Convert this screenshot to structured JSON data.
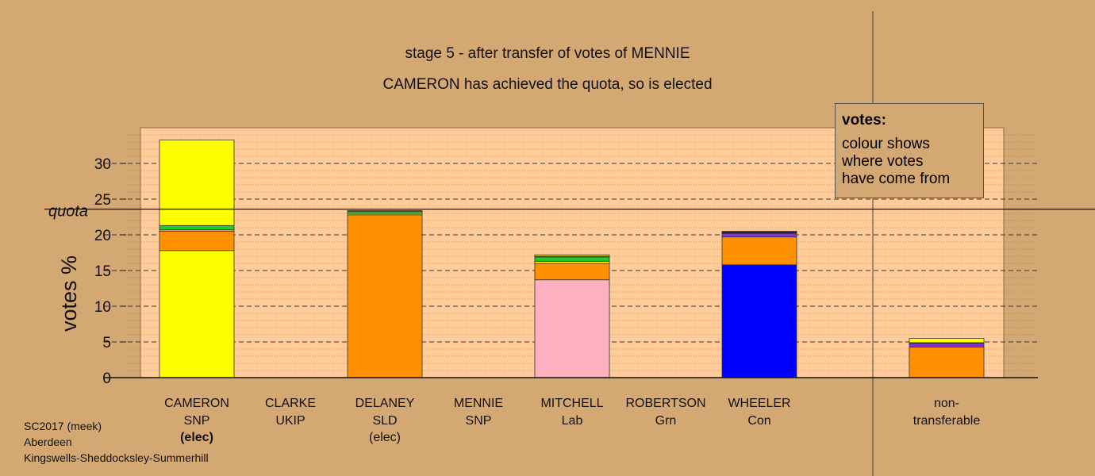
{
  "header": {
    "line1": "stage 5 - after transfer of votes of MENNIE",
    "line2": "CAMERON has achieved the quota, so is elected"
  },
  "legend": {
    "heading": "votes:",
    "lines": [
      "colour shows",
      "where votes",
      "have come from"
    ]
  },
  "footer": {
    "lines": [
      "SC2017 (meek)",
      "Aberdeen",
      "Kingswells-Sheddocksley-Summerhill"
    ]
  },
  "chart_data": {
    "type": "bar",
    "stacked": true,
    "ylabel": "votes %",
    "ylim": [
      0,
      35
    ],
    "yticks": [
      0,
      5,
      10,
      15,
      20,
      25,
      30
    ],
    "quota": 23.6,
    "quota_label": "quota",
    "grid": true,
    "colors": {
      "SNP": "#ffff00",
      "SLD": "#ff9000",
      "Grn": "#22cc22",
      "Lab": "#ffb0c0",
      "Con": "#0000ff",
      "UKIP": "#8b2be2",
      "frame": "#ffcc99",
      "background": "#d4a873"
    },
    "candidates": [
      {
        "name": "CAMERON",
        "party": "SNP",
        "note": "(elec)",
        "note_bold": true,
        "segments": [
          {
            "from": "SNP",
            "value": 17.8
          },
          {
            "from": "SLD",
            "value": 2.7
          },
          {
            "from": "Lab",
            "value": 0.2
          },
          {
            "from": "Grn",
            "value": 0.6
          },
          {
            "from": "SNP",
            "value": 12.0
          }
        ]
      },
      {
        "name": "CLARKE",
        "party": "UKIP",
        "note": "",
        "segments": []
      },
      {
        "name": "DELANEY",
        "party": "SLD",
        "note": "(elec)",
        "segments": [
          {
            "from": "SLD",
            "value": 22.8
          },
          {
            "from": "SNP",
            "value": 0.2
          },
          {
            "from": "Grn",
            "value": 0.3
          },
          {
            "from": "Lab",
            "value": 0.1
          }
        ]
      },
      {
        "name": "MENNIE",
        "party": "SNP",
        "note": "",
        "segments": []
      },
      {
        "name": "MITCHELL",
        "party": "Lab",
        "note": "",
        "segments": [
          {
            "from": "Lab",
            "value": 13.7
          },
          {
            "from": "SLD",
            "value": 2.3
          },
          {
            "from": "SNP",
            "value": 0.3
          },
          {
            "from": "Grn",
            "value": 0.6
          },
          {
            "from": "UKIP",
            "value": 0.1
          },
          {
            "from": "SNP",
            "value": 0.2
          }
        ]
      },
      {
        "name": "ROBERTSON",
        "party": "Grn",
        "note": "",
        "segments": []
      },
      {
        "name": "WHEELER",
        "party": "Con",
        "note": "",
        "segments": [
          {
            "from": "Con",
            "value": 15.8
          },
          {
            "from": "SLD",
            "value": 3.9
          },
          {
            "from": "UKIP",
            "value": 0.5
          },
          {
            "from": "Con",
            "value": 0.2
          },
          {
            "from": "Grn",
            "value": 0.1
          }
        ]
      },
      {
        "name": "non-",
        "party": "transferable",
        "note": "",
        "segments": [
          {
            "from": "SLD",
            "value": 4.3
          },
          {
            "from": "UKIP",
            "value": 0.5
          },
          {
            "from": "Grn",
            "value": 0.1
          },
          {
            "from": "SNP",
            "value": 0.6
          }
        ]
      }
    ]
  }
}
